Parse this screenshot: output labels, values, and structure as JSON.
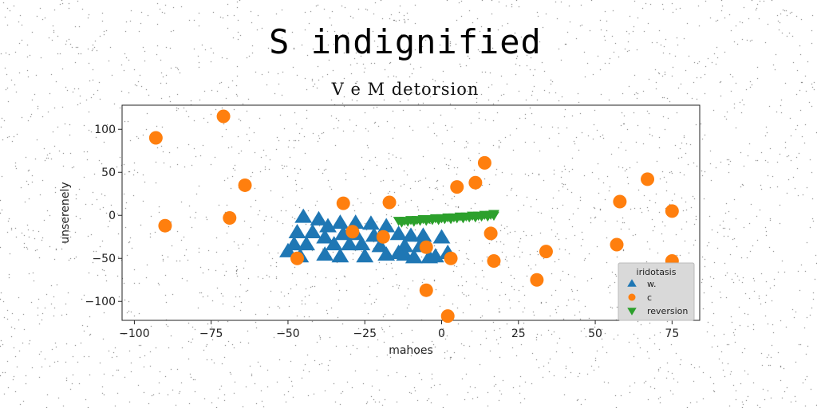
{
  "chart_data": {
    "type": "scatter",
    "title": "S indignified",
    "subtitle": "V e M detorsion",
    "xlabel": "mahoes",
    "ylabel": "unserenely",
    "xlim": [
      -104,
      84
    ],
    "ylim": [
      -122,
      128
    ],
    "xticks": [
      -100,
      -75,
      -50,
      -25,
      0,
      25,
      50,
      75
    ],
    "yticks": [
      100,
      50,
      0,
      -50,
      -100
    ],
    "grid": false,
    "legend": {
      "title": "iridotasis",
      "position": "lower-right"
    },
    "series": [
      {
        "name": "w.",
        "marker": "triangle-up",
        "color": "#1f77b4",
        "points": [
          [
            -45,
            -2
          ],
          [
            -40,
            -5
          ],
          [
            -37,
            -13
          ],
          [
            -33,
            -9
          ],
          [
            -28,
            -9
          ],
          [
            -23,
            -10
          ],
          [
            -18,
            -13
          ],
          [
            -47,
            -20
          ],
          [
            -42,
            -20
          ],
          [
            -38,
            -26
          ],
          [
            -32,
            -22
          ],
          [
            -28,
            -22
          ],
          [
            -22,
            -24
          ],
          [
            -14,
            -22
          ],
          [
            -10,
            -24
          ],
          [
            -6,
            -24
          ],
          [
            0,
            -26
          ],
          [
            -48,
            -34
          ],
          [
            -44,
            -34
          ],
          [
            -35,
            -34
          ],
          [
            -30,
            -34
          ],
          [
            -26,
            -34
          ],
          [
            -20,
            -36
          ],
          [
            -12,
            -36
          ],
          [
            -7,
            -36
          ],
          [
            -50,
            -42
          ],
          [
            -38,
            -46
          ],
          [
            -33,
            -48
          ],
          [
            -25,
            -48
          ],
          [
            -18,
            -46
          ],
          [
            -12,
            -46
          ],
          [
            -9,
            -49
          ],
          [
            -4,
            -49
          ],
          [
            -2,
            -48
          ],
          [
            2,
            -44
          ],
          [
            -46,
            -48
          ],
          [
            -14,
            -44
          ]
        ]
      },
      {
        "name": "c",
        "marker": "circle",
        "color": "#ff7f0e",
        "points": [
          [
            -93,
            90
          ],
          [
            -71,
            115
          ],
          [
            -64,
            35
          ],
          [
            -90,
            -12
          ],
          [
            -69,
            -3
          ],
          [
            -47,
            -50
          ],
          [
            -32,
            14
          ],
          [
            -29,
            -19
          ],
          [
            -19,
            -25
          ],
          [
            -17,
            15
          ],
          [
            -5,
            -37
          ],
          [
            -5,
            -87
          ],
          [
            2,
            -117
          ],
          [
            3,
            -50
          ],
          [
            5,
            33
          ],
          [
            11,
            38
          ],
          [
            14,
            61
          ],
          [
            16,
            -21
          ],
          [
            17,
            -53
          ],
          [
            31,
            -75
          ],
          [
            34,
            -42
          ],
          [
            57,
            -34
          ],
          [
            58,
            16
          ],
          [
            67,
            42
          ],
          [
            75,
            5
          ],
          [
            75,
            -53
          ]
        ]
      },
      {
        "name": "reversion",
        "marker": "triangle-down",
        "color": "#2ca02c",
        "points": [
          [
            -14,
            -6
          ],
          [
            -12,
            -6
          ],
          [
            -10,
            -5
          ],
          [
            -8,
            -5
          ],
          [
            -6,
            -4
          ],
          [
            -4,
            -4
          ],
          [
            -2,
            -3
          ],
          [
            0,
            -3
          ],
          [
            2,
            -2
          ],
          [
            4,
            -2
          ],
          [
            6,
            -1
          ],
          [
            8,
            -1
          ],
          [
            10,
            0
          ],
          [
            12,
            0
          ],
          [
            14,
            1
          ],
          [
            16,
            1
          ],
          [
            17,
            2
          ],
          [
            -13,
            -8
          ],
          [
            -11,
            -7
          ],
          [
            -9,
            -7
          ],
          [
            -7,
            -6
          ],
          [
            -5,
            -6
          ],
          [
            -3,
            -5
          ],
          [
            -1,
            -5
          ],
          [
            1,
            -4
          ],
          [
            3,
            -4
          ],
          [
            5,
            -3
          ],
          [
            7,
            -3
          ],
          [
            9,
            -2
          ],
          [
            11,
            -2
          ],
          [
            13,
            -1
          ],
          [
            15,
            -1
          ],
          [
            17,
            0
          ]
        ]
      }
    ]
  }
}
